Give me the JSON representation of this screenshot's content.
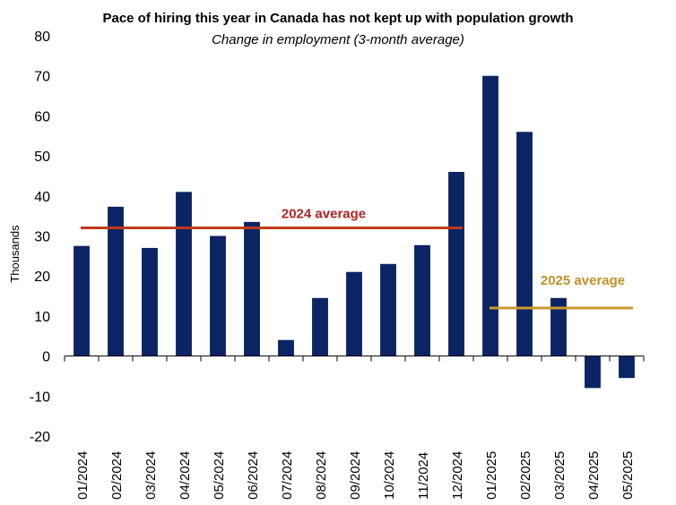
{
  "chart_data": {
    "type": "bar",
    "title": "Pace of hiring this year in Canada has not kept up with population growth",
    "subtitle": "Change in employment (3-month average)",
    "ylabel": "Thousands",
    "xlabel": "",
    "ylim": [
      -20,
      80
    ],
    "yticks": [
      -20,
      -10,
      0,
      10,
      20,
      30,
      40,
      50,
      60,
      70,
      80
    ],
    "categories": [
      "01/2024",
      "02/2024",
      "03/2024",
      "04/2024",
      "05/2024",
      "06/2024",
      "07/2024",
      "08/2024",
      "09/2024",
      "10/2024",
      "11/2024",
      "12/2024",
      "01/2025",
      "02/2025",
      "03/2025",
      "04/2025",
      "05/2025"
    ],
    "series": [
      {
        "name": "Change in employment (3-month average)",
        "color": "#0b2463",
        "values": [
          27.5,
          37.3,
          27.0,
          41.0,
          30.0,
          33.5,
          4.0,
          14.5,
          21.0,
          23.0,
          27.7,
          46.0,
          70.0,
          56.0,
          14.5,
          -8.0,
          -5.5
        ]
      }
    ],
    "reference_lines": [
      {
        "label": "2024 average",
        "value": 32,
        "from": "01/2024",
        "to": "12/2024",
        "color": "#c0391b",
        "text_color": "#b22222"
      },
      {
        "label": "2025 average",
        "value": 12,
        "from": "01/2025",
        "to": "05/2025",
        "color": "#c99a2e",
        "text_color": "#c0902a"
      }
    ],
    "grid": false
  }
}
